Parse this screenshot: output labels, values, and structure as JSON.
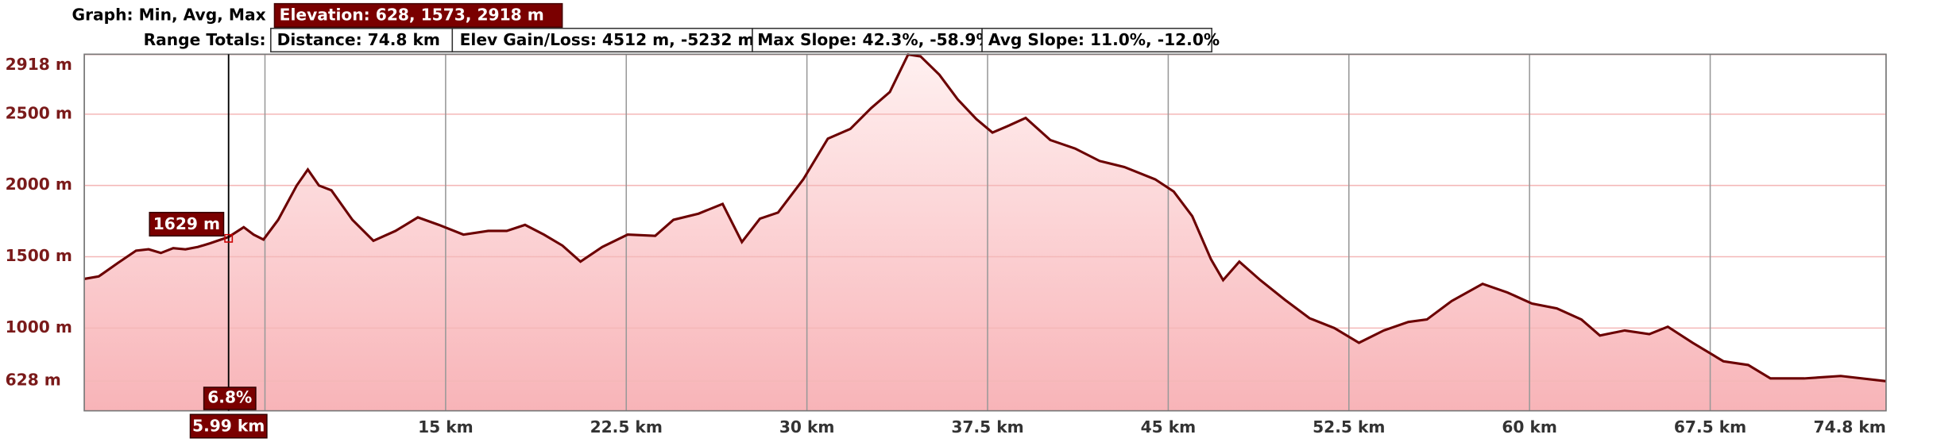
{
  "header": {
    "graph_label": "Graph: Min, Avg, Max",
    "elevation": "Elevation: 628, 1573, 2918 m",
    "range_label": "Range Totals:",
    "distance": "Distance: 74.8 km",
    "gain_loss": "Elev Gain/Loss: 4512 m, -5232 m",
    "max_slope": "Max Slope: 42.3%, -58.9%",
    "avg_slope": "Avg Slope: 11.0%, -12.0%"
  },
  "chart_data": {
    "type": "area",
    "color": "#6b0000",
    "x": [
      0,
      0.6,
      1.4,
      2.15,
      2.67,
      3.18,
      3.69,
      4.2,
      4.72,
      5.23,
      6.0,
      6.62,
      7.03,
      7.44,
      8.05,
      8.82,
      9.28,
      9.74,
      10.26,
      11.13,
      12.0,
      12.92,
      13.85,
      14.72,
      15.74,
      16.77,
      17.54,
      18.3,
      19.08,
      19.85,
      20.6,
      21.5,
      22.56,
      23.7,
      24.46,
      25.5,
      26.5,
      27.3,
      28.05,
      28.8,
      29.85,
      30.87,
      31.8,
      32.67,
      33.44,
      34.2,
      34.72,
      35.5,
      36.26,
      37.03,
      37.7,
      38.3,
      39.08,
      40.1,
      41.13,
      42.15,
      43.18,
      44.46,
      45.23,
      46.0,
      46.77,
      47.28,
      47.95,
      48.82,
      49.85,
      50.87,
      51.9,
      52.92,
      53.95,
      54.97,
      55.74,
      56.77,
      58.05,
      59.08,
      60.1,
      61.13,
      62.15,
      62.92,
      63.95,
      64.97,
      65.74,
      66.77,
      68.05,
      69.08,
      70.0,
      71.4,
      72.92,
      74.8
    ],
    "values": [
      1345,
      1362,
      1457,
      1543,
      1552,
      1526,
      1560,
      1552,
      1569,
      1595,
      1640,
      1707,
      1655,
      1621,
      1759,
      2000,
      2112,
      2000,
      1966,
      1759,
      1612,
      1681,
      1776,
      1724,
      1655,
      1681,
      1681,
      1724,
      1655,
      1578,
      1466,
      1569,
      1655,
      1647,
      1759,
      1802,
      1871,
      1603,
      1767,
      1810,
      2043,
      2328,
      2397,
      2543,
      2655,
      2918,
      2905,
      2776,
      2603,
      2466,
      2371,
      2414,
      2474,
      2319,
      2259,
      2172,
      2129,
      2043,
      1957,
      1784,
      1483,
      1336,
      1466,
      1336,
      1198,
      1069,
      1000,
      897,
      983,
      1043,
      1060,
      1190,
      1310,
      1250,
      1172,
      1138,
      1060,
      948,
      983,
      957,
      1009,
      897,
      767,
      741,
      647,
      647,
      664,
      628
    ],
    "xlim": [
      0,
      74.8
    ],
    "ylim": [
      420,
      2920
    ],
    "xticks": [
      {
        "value": 7.5,
        "label": null
      },
      {
        "value": 15,
        "label": "15 km"
      },
      {
        "value": 22.5,
        "label": "22.5 km"
      },
      {
        "value": 30,
        "label": "30 km"
      },
      {
        "value": 37.5,
        "label": "37.5 km"
      },
      {
        "value": 45,
        "label": "45 km"
      },
      {
        "value": 52.5,
        "label": "52.5 km"
      },
      {
        "value": 60,
        "label": "60 km"
      },
      {
        "value": 67.5,
        "label": "67.5 km"
      },
      {
        "value": 74.8,
        "label": "74.8 km"
      }
    ],
    "yticks": [
      {
        "value": 628,
        "label": "628 m"
      },
      {
        "value": 1000,
        "label": "1000 m"
      },
      {
        "value": 1500,
        "label": "1500 m"
      },
      {
        "value": 2000,
        "label": "2000 m"
      },
      {
        "value": 2500,
        "label": "2500 m"
      },
      {
        "value": 2918,
        "label": "2918 m"
      }
    ],
    "cursor": {
      "x": 5.99,
      "value": 1629,
      "x_label": "5.99 km",
      "value_label": "1629 m",
      "slope": "6.8%"
    }
  }
}
